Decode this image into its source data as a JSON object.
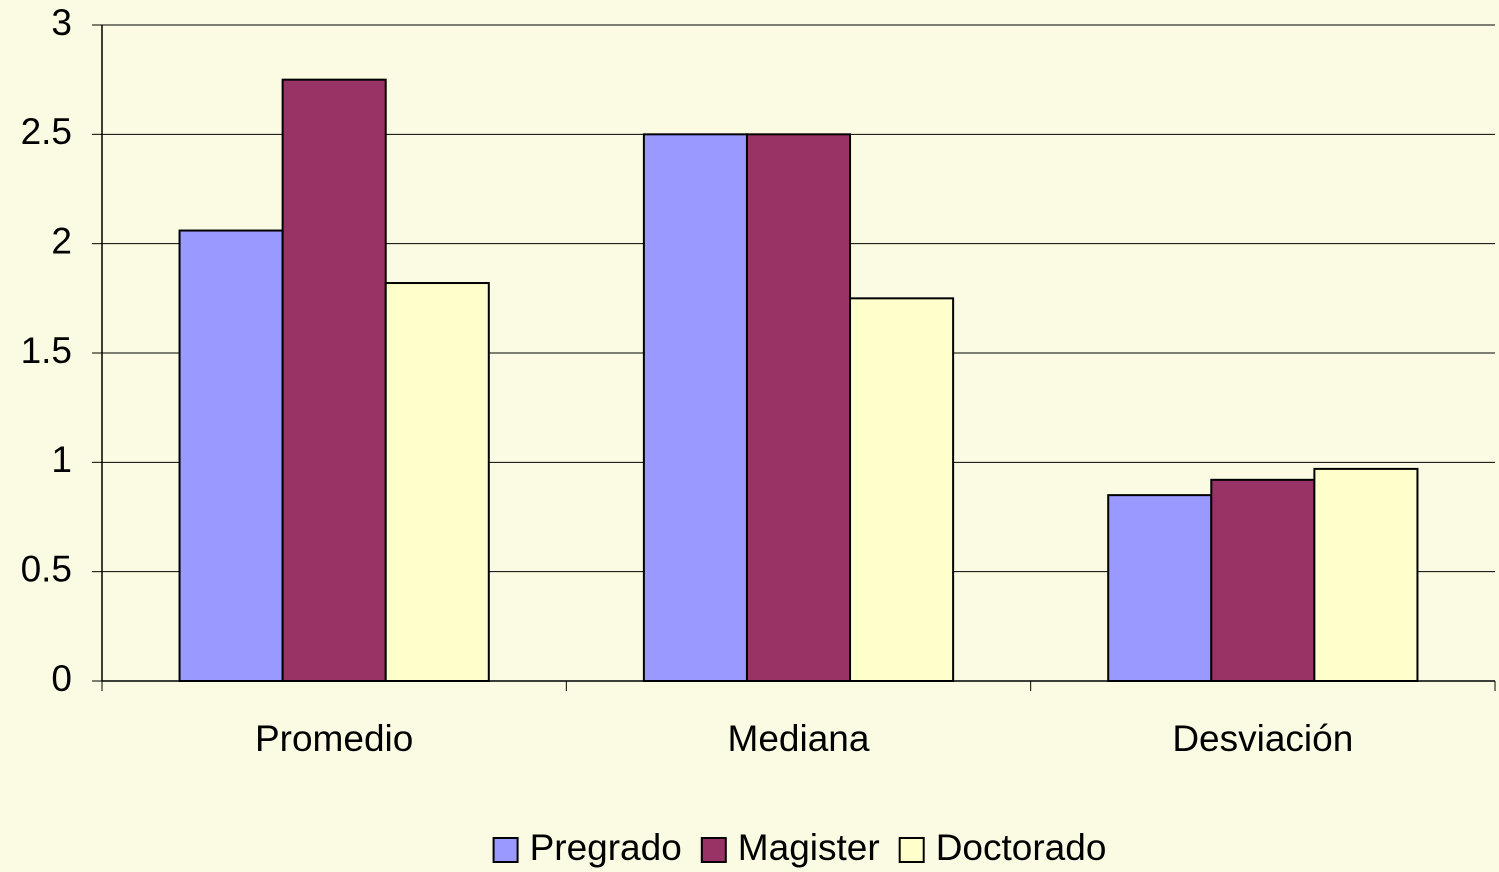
{
  "chart_data": {
    "type": "bar",
    "categories": [
      "Promedio",
      "Mediana",
      "Desviación"
    ],
    "series": [
      {
        "name": "Pregrado",
        "color": "#9999ff",
        "values": [
          2.06,
          2.5,
          0.85
        ]
      },
      {
        "name": "Magister",
        "color": "#993366",
        "values": [
          2.75,
          2.5,
          0.92
        ]
      },
      {
        "name": "Doctorado",
        "color": "#ffffcc",
        "values": [
          1.82,
          1.75,
          0.97
        ]
      }
    ],
    "ylim": [
      0,
      3
    ],
    "yticks": [
      0,
      0.5,
      1,
      1.5,
      2,
      2.5,
      3
    ],
    "grid": true,
    "legend": "bottom"
  }
}
